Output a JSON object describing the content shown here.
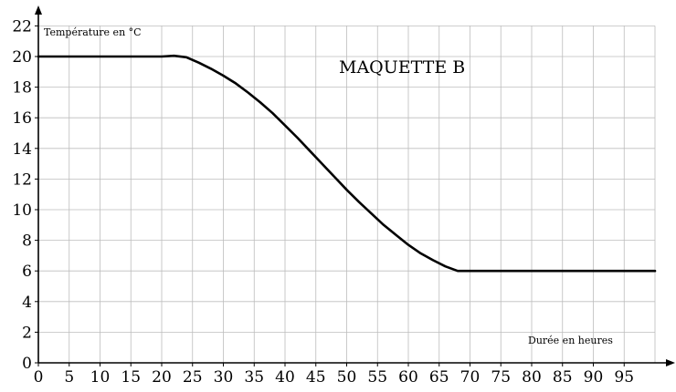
{
  "chart_data": {
    "type": "line",
    "title": "MAQUETTE B",
    "xlabel": "Durée en heures",
    "ylabel": "Température en °C",
    "xlim": [
      0,
      100
    ],
    "ylim": [
      0,
      22
    ],
    "grid": true,
    "x_ticks": [
      "0",
      "5",
      "10",
      "15",
      "20",
      "25",
      "30",
      "35",
      "40",
      "45",
      "50",
      "55",
      "60",
      "65",
      "70",
      "75",
      "80",
      "85",
      "90",
      "95"
    ],
    "y_ticks": [
      "0",
      "2",
      "4",
      "6",
      "8",
      "10",
      "12",
      "14",
      "16",
      "18",
      "20",
      "22"
    ],
    "series": [
      {
        "x": [
          0,
          20,
          22,
          24,
          26,
          28,
          30,
          32,
          34,
          36,
          38,
          40,
          42,
          44,
          46,
          48,
          50,
          52,
          54,
          56,
          58,
          60,
          62,
          64,
          66,
          68,
          70,
          80,
          90,
          100
        ],
        "y": [
          20,
          20,
          20.05,
          19.95,
          19.6,
          19.2,
          18.75,
          18.25,
          17.65,
          17.0,
          16.3,
          15.5,
          14.7,
          13.85,
          13.0,
          12.15,
          11.3,
          10.5,
          9.75,
          9.0,
          8.35,
          7.7,
          7.15,
          6.7,
          6.3,
          6.0,
          6.0,
          6.0,
          6.0,
          6.0
        ]
      }
    ]
  }
}
